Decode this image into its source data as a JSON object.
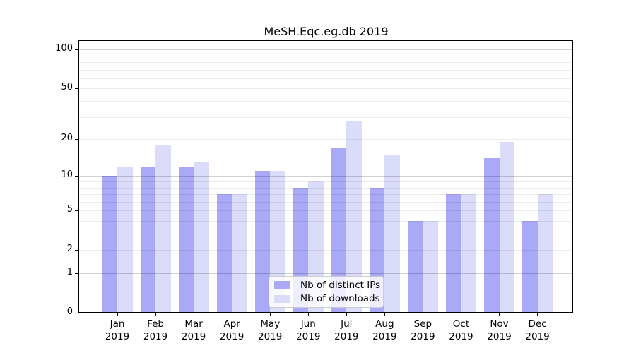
{
  "figure": {
    "background": "#ffffff"
  },
  "chart_data": {
    "type": "bar",
    "title": "MeSH.Eqc.eg.db 2019",
    "xlabel": "",
    "ylabel": "",
    "categories": [
      "Jan",
      "Feb",
      "Mar",
      "Apr",
      "May",
      "Jun",
      "Jul",
      "Aug",
      "Sep",
      "Oct",
      "Nov",
      "Dec"
    ],
    "category_year": "2019",
    "series": [
      {
        "name": "Nb of distinct IPs",
        "color": "#a9a9f7",
        "values": [
          10,
          12,
          12,
          7,
          11,
          8,
          17,
          8,
          4,
          7,
          14,
          4
        ]
      },
      {
        "name": "Nb of downloads",
        "color": "#dbdbfa",
        "values": [
          12,
          18,
          13,
          7,
          11,
          9,
          28,
          15,
          4,
          7,
          19,
          7
        ]
      }
    ],
    "yaxis": {
      "scale": "log1p",
      "tick_labels": [
        0,
        1,
        2,
        5,
        10,
        20,
        50,
        100
      ],
      "major_gridlines": [
        1,
        10,
        100
      ],
      "minor_gridlines": [
        2,
        3,
        4,
        5,
        6,
        7,
        8,
        9,
        20,
        30,
        40,
        50,
        60,
        70,
        80,
        90
      ],
      "ylim": [
        0,
        116
      ]
    },
    "grid": true,
    "legend_position": "lower center",
    "colors": {
      "major_grid": "rgba(0,0,0,0.18)",
      "minor_grid": "rgba(0,0,0,0.08)",
      "spine": "#000000",
      "text": "#000000",
      "legend_border": "#cccccc"
    }
  }
}
